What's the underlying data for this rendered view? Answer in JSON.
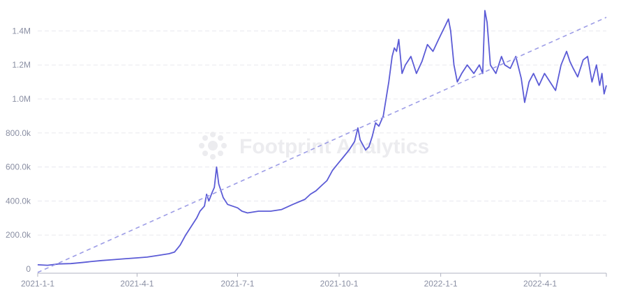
{
  "chart_data": {
    "type": "line",
    "title": "",
    "xlabel": "",
    "ylabel": "",
    "watermark": "Footprint Analytics",
    "x_ticks": [
      "2021-1-1",
      "2021-4-1",
      "2021-7-1",
      "2021-10-1",
      "2022-1-1",
      "2022-4-1"
    ],
    "y_ticks": [
      "0",
      "200.0k",
      "400.0k",
      "600.0k",
      "800.0k",
      "1.0M",
      "1.2M",
      "1.4M"
    ],
    "ylim": [
      0,
      1500000
    ],
    "xlim": [
      "2021-01-01",
      "2022-05-31"
    ],
    "grid": true,
    "colors": {
      "line": "#5b5bd6",
      "trend": "#9c9ce6",
      "grid": "#e8e8ee",
      "axis": "#b0b3c0"
    },
    "series": [
      {
        "style": "solid",
        "points": [
          [
            "2021-01-01",
            25000
          ],
          [
            "2021-01-10",
            22000
          ],
          [
            "2021-01-20",
            30000
          ],
          [
            "2021-01-31",
            32000
          ],
          [
            "2021-02-10",
            38000
          ],
          [
            "2021-02-20",
            45000
          ],
          [
            "2021-02-28",
            50000
          ],
          [
            "2021-03-10",
            55000
          ],
          [
            "2021-03-20",
            60000
          ],
          [
            "2021-03-31",
            65000
          ],
          [
            "2021-04-10",
            70000
          ],
          [
            "2021-04-20",
            80000
          ],
          [
            "2021-04-30",
            90000
          ],
          [
            "2021-05-05",
            100000
          ],
          [
            "2021-05-10",
            140000
          ],
          [
            "2021-05-15",
            200000
          ],
          [
            "2021-05-20",
            250000
          ],
          [
            "2021-05-25",
            300000
          ],
          [
            "2021-05-28",
            340000
          ],
          [
            "2021-06-01",
            370000
          ],
          [
            "2021-06-03",
            440000
          ],
          [
            "2021-06-05",
            400000
          ],
          [
            "2021-06-08",
            450000
          ],
          [
            "2021-06-10",
            480000
          ],
          [
            "2021-06-12",
            600000
          ],
          [
            "2021-06-14",
            500000
          ],
          [
            "2021-06-18",
            420000
          ],
          [
            "2021-06-22",
            380000
          ],
          [
            "2021-07-01",
            360000
          ],
          [
            "2021-07-05",
            340000
          ],
          [
            "2021-07-10",
            330000
          ],
          [
            "2021-07-20",
            340000
          ],
          [
            "2021-07-31",
            340000
          ],
          [
            "2021-08-10",
            350000
          ],
          [
            "2021-08-20",
            380000
          ],
          [
            "2021-08-31",
            410000
          ],
          [
            "2021-09-05",
            440000
          ],
          [
            "2021-09-10",
            460000
          ],
          [
            "2021-09-15",
            490000
          ],
          [
            "2021-09-20",
            520000
          ],
          [
            "2021-09-25",
            580000
          ],
          [
            "2021-09-30",
            620000
          ],
          [
            "2021-10-05",
            660000
          ],
          [
            "2021-10-10",
            700000
          ],
          [
            "2021-10-15",
            750000
          ],
          [
            "2021-10-18",
            830000
          ],
          [
            "2021-10-20",
            760000
          ],
          [
            "2021-10-25",
            700000
          ],
          [
            "2021-10-28",
            720000
          ],
          [
            "2021-10-31",
            780000
          ],
          [
            "2021-11-03",
            860000
          ],
          [
            "2021-11-06",
            840000
          ],
          [
            "2021-11-10",
            900000
          ],
          [
            "2021-11-15",
            1100000
          ],
          [
            "2021-11-18",
            1250000
          ],
          [
            "2021-11-20",
            1300000
          ],
          [
            "2021-11-22",
            1280000
          ],
          [
            "2021-11-24",
            1350000
          ],
          [
            "2021-11-27",
            1150000
          ],
          [
            "2021-11-30",
            1200000
          ],
          [
            "2021-12-05",
            1250000
          ],
          [
            "2021-12-10",
            1150000
          ],
          [
            "2021-12-15",
            1220000
          ],
          [
            "2021-12-20",
            1320000
          ],
          [
            "2021-12-25",
            1280000
          ],
          [
            "2021-12-30",
            1350000
          ],
          [
            "2022-01-05",
            1430000
          ],
          [
            "2022-01-08",
            1470000
          ],
          [
            "2022-01-10",
            1400000
          ],
          [
            "2022-01-13",
            1200000
          ],
          [
            "2022-01-16",
            1100000
          ],
          [
            "2022-01-20",
            1150000
          ],
          [
            "2022-01-25",
            1200000
          ],
          [
            "2022-01-31",
            1150000
          ],
          [
            "2022-02-05",
            1200000
          ],
          [
            "2022-02-08",
            1150000
          ],
          [
            "2022-02-10",
            1520000
          ],
          [
            "2022-02-12",
            1450000
          ],
          [
            "2022-02-15",
            1200000
          ],
          [
            "2022-02-20",
            1150000
          ],
          [
            "2022-02-25",
            1250000
          ],
          [
            "2022-02-28",
            1200000
          ],
          [
            "2022-03-05",
            1180000
          ],
          [
            "2022-03-10",
            1250000
          ],
          [
            "2022-03-15",
            1120000
          ],
          [
            "2022-03-18",
            980000
          ],
          [
            "2022-03-22",
            1100000
          ],
          [
            "2022-03-26",
            1150000
          ],
          [
            "2022-03-31",
            1080000
          ],
          [
            "2022-04-05",
            1150000
          ],
          [
            "2022-04-10",
            1100000
          ],
          [
            "2022-04-15",
            1050000
          ],
          [
            "2022-04-20",
            1200000
          ],
          [
            "2022-04-25",
            1280000
          ],
          [
            "2022-04-28",
            1220000
          ],
          [
            "2022-05-01",
            1180000
          ],
          [
            "2022-05-05",
            1130000
          ],
          [
            "2022-05-10",
            1230000
          ],
          [
            "2022-05-14",
            1250000
          ],
          [
            "2022-05-18",
            1100000
          ],
          [
            "2022-05-22",
            1200000
          ],
          [
            "2022-05-25",
            1080000
          ],
          [
            "2022-05-27",
            1150000
          ],
          [
            "2022-05-29",
            1030000
          ],
          [
            "2022-05-31",
            1080000
          ]
        ]
      },
      {
        "style": "dashed",
        "points": [
          [
            "2021-01-01",
            -20000
          ],
          [
            "2022-05-31",
            1480000
          ]
        ]
      }
    ]
  }
}
